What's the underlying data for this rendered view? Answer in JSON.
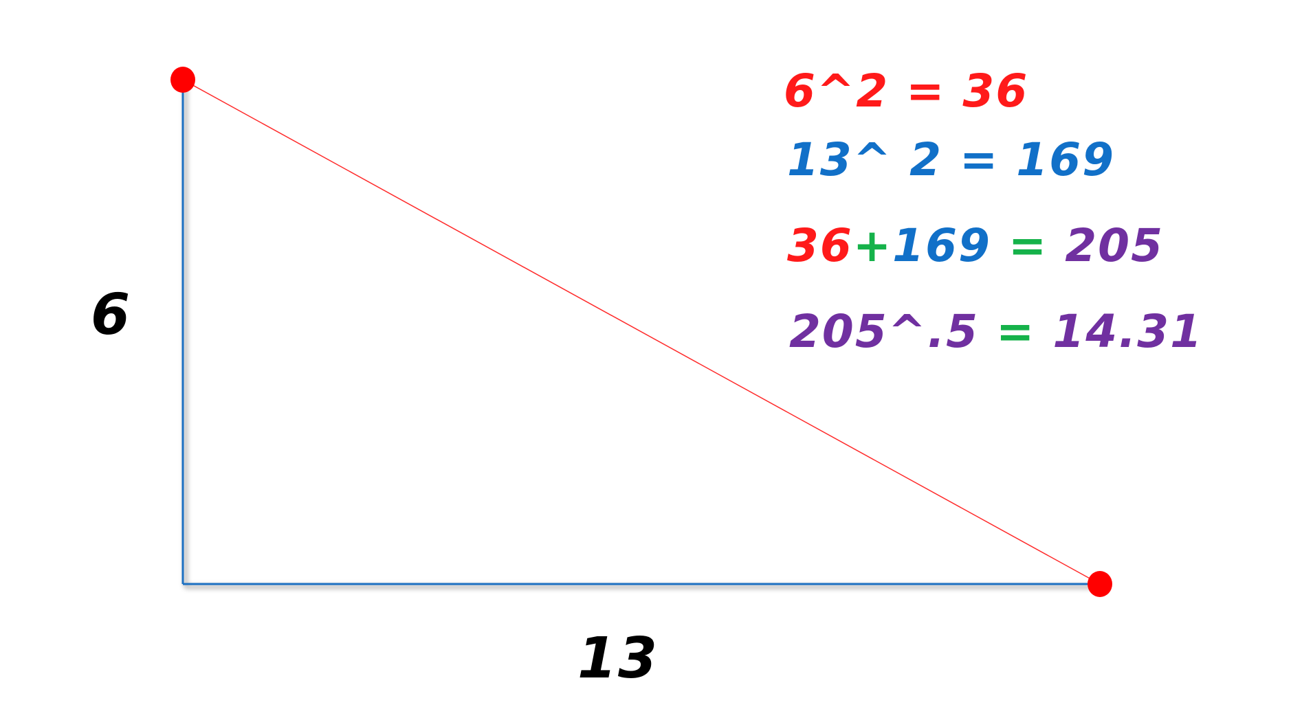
{
  "figure": {
    "side_vertical_label": "6",
    "side_horizontal_label": "13",
    "colors": {
      "legs": "#1e6fc2",
      "hypotenuse": "#ff2a2a",
      "vertex_dot": "#ff0000",
      "label": "#000000",
      "red": "#ff1a1a",
      "blue": "#1170c8",
      "green": "#15b24a",
      "purple": "#7030a0"
    }
  },
  "equations": {
    "line1": "6^2 = 36",
    "line2": "13^ 2 = 169",
    "line3": {
      "part_a": "36",
      "part_b": "+",
      "part_c": "169",
      "part_d": " = ",
      "part_e": "205"
    },
    "line4": {
      "part_a": "205^.5",
      "part_b": " = ",
      "part_c": "14.31"
    }
  }
}
